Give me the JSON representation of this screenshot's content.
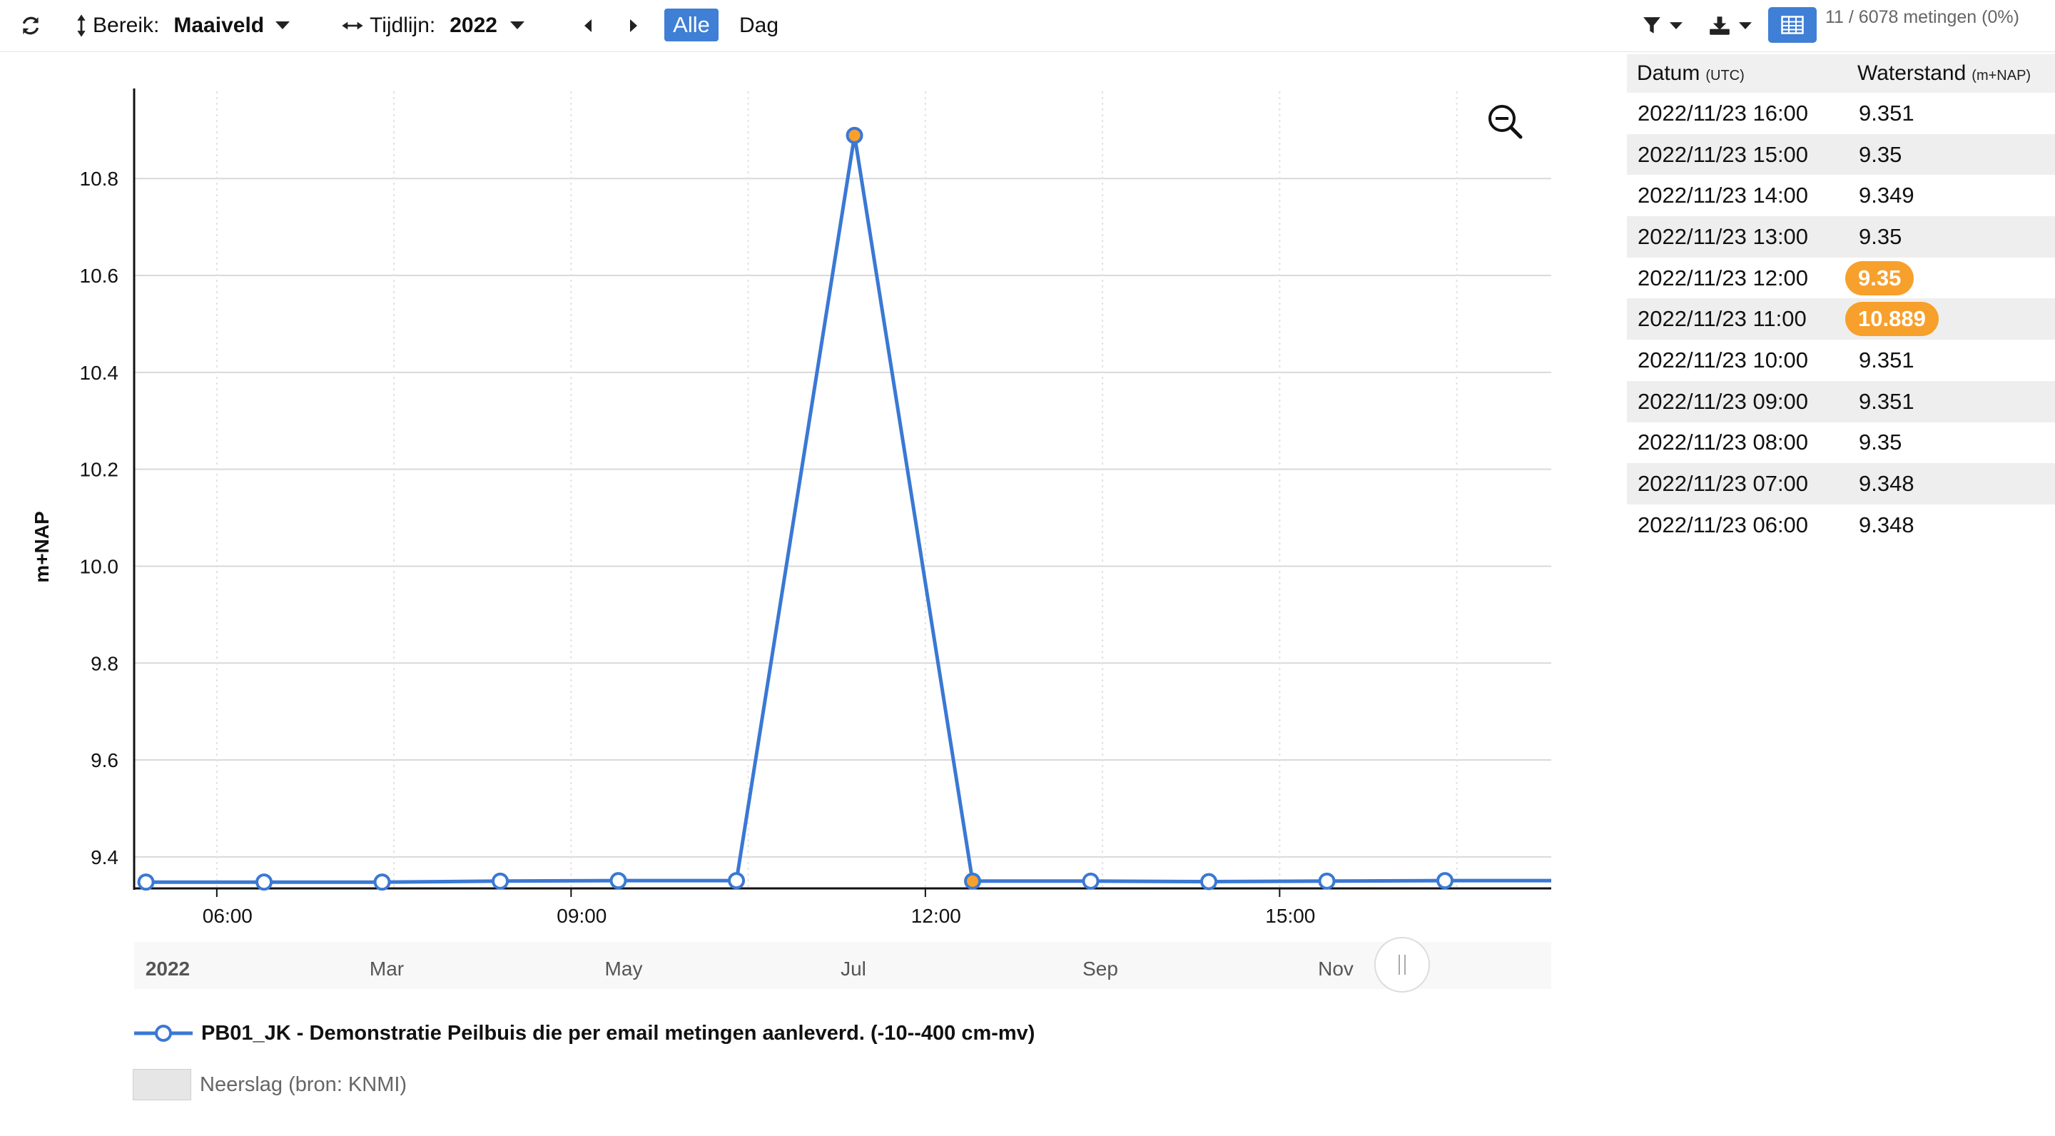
{
  "toolbar": {
    "refresh_icon": "refresh-icon",
    "bereik_label": "Bereik:",
    "bereik_value": "Maaiveld",
    "tijdlijn_label": "Tijdlijn:",
    "tijdlijn_value": "2022",
    "alle_label": "Alle",
    "dag_label": "Dag",
    "measurement_count": "11 / 6078 metingen (0%)"
  },
  "colors": {
    "accent": "#3f7fd6",
    "series": "#3a78d4",
    "highlight": "#f7a02c",
    "grid": "#d9d9d9"
  },
  "chart_data": {
    "type": "line",
    "ylabel": "m+NAP",
    "ylim": [
      9.335,
      10.98
    ],
    "yticks": [
      9.4,
      9.6,
      9.8,
      10.0,
      10.2,
      10.4,
      10.6,
      10.8
    ],
    "ytick_labels": [
      "9.4",
      "9.6",
      "9.8",
      "10.0",
      "10.2",
      "10.4",
      "10.6",
      "10.8"
    ],
    "x_tick_labels": [
      "06:00",
      "09:00",
      "12:00",
      "15:00"
    ],
    "x_tick_hours": [
      6,
      9,
      12,
      15
    ],
    "xlim_hours": [
      5.3,
      17.3
    ],
    "navigator_labels": [
      "2022",
      "Mar",
      "May",
      "Jul",
      "Sep",
      "Nov"
    ],
    "grid": true,
    "series": [
      {
        "name": "PB01_JK - Demonstratie Peilbuis die per email metingen aanleverd. (-10--400 cm-mv)",
        "x_hours": [
          5.4,
          6.4,
          7.4,
          8.4,
          9.4,
          10.4,
          11.4,
          12.4,
          13.4,
          14.4,
          15.4,
          16.4,
          17.3
        ],
        "values": [
          9.348,
          9.348,
          9.348,
          9.35,
          9.351,
          9.351,
          10.889,
          9.35,
          9.35,
          9.349,
          9.35,
          9.351,
          9.351
        ],
        "highlighted_indices": [
          6,
          7
        ]
      }
    ]
  },
  "legend": {
    "series_label": "PB01_JK - Demonstratie Peilbuis die per email metingen aanleverd. (-10--400 cm-mv)",
    "rain_label": "Neerslag (bron: KNMI)"
  },
  "table": {
    "date_header": "Datum",
    "date_unit": "(UTC)",
    "value_header": "Waterstand",
    "value_unit": "(m+NAP)",
    "rows": [
      {
        "date": "2022/11/23 16:00",
        "value": "9.351",
        "highlight": false
      },
      {
        "date": "2022/11/23 15:00",
        "value": "9.35",
        "highlight": false
      },
      {
        "date": "2022/11/23 14:00",
        "value": "9.349",
        "highlight": false
      },
      {
        "date": "2022/11/23 13:00",
        "value": "9.35",
        "highlight": false
      },
      {
        "date": "2022/11/23 12:00",
        "value": "9.35",
        "highlight": true
      },
      {
        "date": "2022/11/23 11:00",
        "value": "10.889",
        "highlight": true
      },
      {
        "date": "2022/11/23 10:00",
        "value": "9.351",
        "highlight": false
      },
      {
        "date": "2022/11/23 09:00",
        "value": "9.351",
        "highlight": false
      },
      {
        "date": "2022/11/23 08:00",
        "value": "9.35",
        "highlight": false
      },
      {
        "date": "2022/11/23 07:00",
        "value": "9.348",
        "highlight": false
      },
      {
        "date": "2022/11/23 06:00",
        "value": "9.348",
        "highlight": false
      }
    ]
  }
}
